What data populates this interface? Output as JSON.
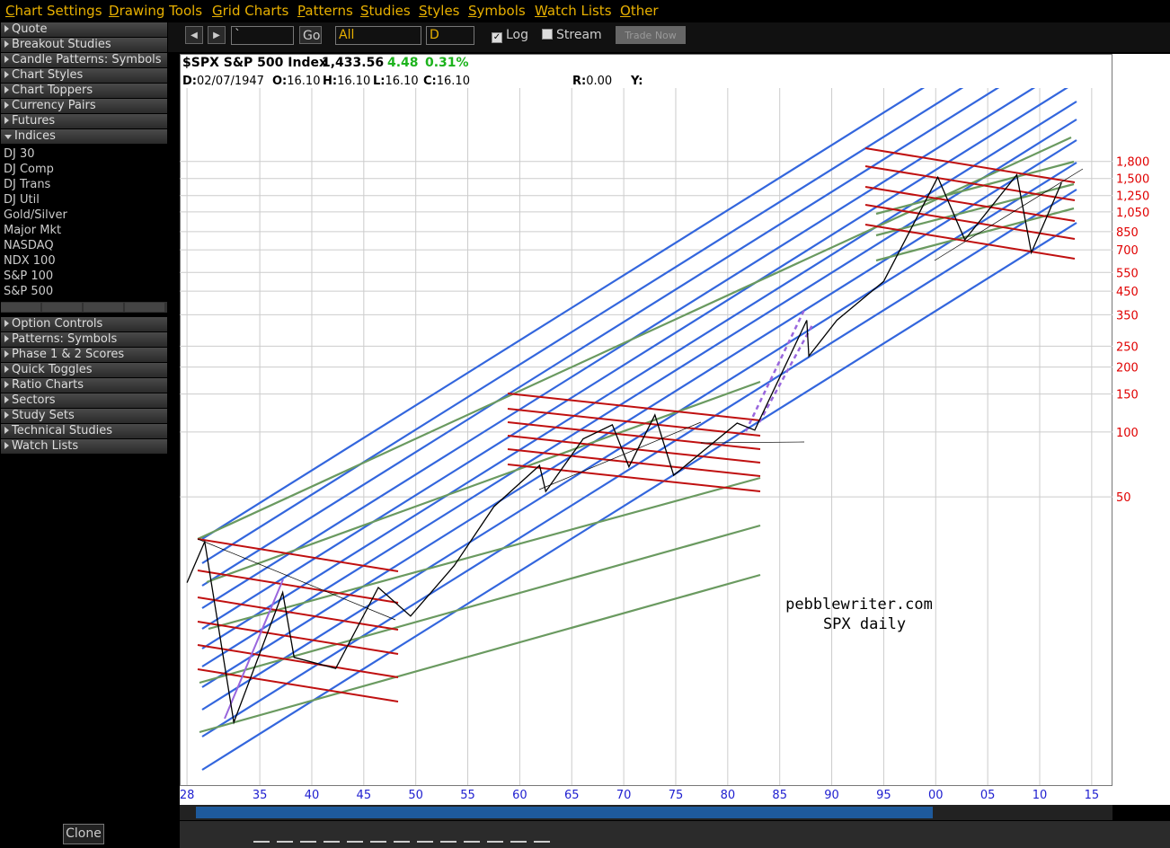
{
  "menu": [
    "Chart Settings",
    "Drawing Tools",
    "Grid Charts",
    "Patterns",
    "Studies",
    "Styles",
    "Symbols",
    "Watch Lists",
    "Other"
  ],
  "sidebar": {
    "top_sections": [
      "Quote",
      "Breakout Studies",
      "Candle Patterns: Symbols",
      "Chart Styles",
      "Chart Toppers",
      "Currency Pairs",
      "Futures"
    ],
    "open_section": "Indices",
    "indices": [
      "DJ 30",
      "DJ Comp",
      "DJ Trans",
      "DJ Util",
      "Gold/Silver",
      "Major Mkt",
      "NASDAQ",
      "NDX 100",
      "S&P 100",
      "S&P 500"
    ],
    "bottom_sections": [
      "Option Controls",
      "Patterns: Symbols",
      "Phase 1 & 2 Scores",
      "Quick Toggles",
      "Ratio Charts",
      "Sectors",
      "Study Sets",
      "Technical Studies",
      "Watch Lists"
    ],
    "clone": "Clone"
  },
  "toolbar": {
    "symbol": "`",
    "go": "Go",
    "range": "All",
    "period": "D",
    "log": "Log",
    "stream": "Stream",
    "trade": "Trade Now"
  },
  "header": {
    "symbol": "$SPX S&P 500 Index",
    "last": "1,433.56",
    "change": "4.48",
    "change_pct": "0.31%",
    "fields": [
      [
        "D:",
        "02/07/1947"
      ],
      [
        "O:",
        "16.10"
      ],
      [
        "H:",
        "16.10"
      ],
      [
        "L:",
        "16.10"
      ],
      [
        "C:",
        "16.10"
      ]
    ],
    "r": [
      "R:",
      "0.00"
    ],
    "y": "Y:"
  },
  "chart_data": {
    "type": "line",
    "log_y": true,
    "grid": true,
    "color": "#000000",
    "annotations": [
      "pebblewriter.com",
      "SPX daily"
    ],
    "x": [
      1928,
      1929.7,
      1932.5,
      1937.2,
      1938.3,
      1942.3,
      1946.4,
      1949.5,
      1953.7,
      1957.5,
      1961.9,
      1962.5,
      1966.1,
      1968.9,
      1970.5,
      1973.0,
      1974.8,
      1980.9,
      1982.6,
      1987.6,
      1987.8,
      1990.5,
      1995.0,
      2000.2,
      2002.8,
      2007.8,
      2009.2,
      2012.1
    ],
    "values": [
      20,
      31,
      4.5,
      18,
      9,
      8,
      19,
      14,
      24,
      45,
      70,
      53,
      93,
      108,
      69,
      120,
      63,
      110,
      102,
      330,
      225,
      330,
      500,
      1520,
      780,
      1560,
      680,
      1433.56
    ],
    "xlim": [
      1927.3,
      2017
    ],
    "xticks": [
      {
        "value": 1928,
        "label": "28"
      },
      {
        "value": 1935,
        "label": "35"
      },
      {
        "value": 1940,
        "label": "40"
      },
      {
        "value": 1945,
        "label": "45"
      },
      {
        "value": 1950,
        "label": "50"
      },
      {
        "value": 1955,
        "label": "55"
      },
      {
        "value": 1960,
        "label": "60"
      },
      {
        "value": 1965,
        "label": "65"
      },
      {
        "value": 1970,
        "label": "70"
      },
      {
        "value": 1975,
        "label": "75"
      },
      {
        "value": 1980,
        "label": "80"
      },
      {
        "value": 1985,
        "label": "85"
      },
      {
        "value": 1990,
        "label": "90"
      },
      {
        "value": 1995,
        "label": "95"
      },
      {
        "value": 2000,
        "label": "00"
      },
      {
        "value": 2005,
        "label": "05"
      },
      {
        "value": 2010,
        "label": "10"
      },
      {
        "value": 2015,
        "label": "15"
      }
    ],
    "ylim": [
      2.3,
      5570
    ],
    "yticks": [
      50,
      100,
      150,
      200,
      250,
      350,
      450,
      550,
      700,
      850,
      {
        "value": 1050,
        "label": "1,050"
      },
      {
        "value": 1250,
        "label": "1,250"
      },
      {
        "value": 1500,
        "label": "1,500"
      },
      {
        "value": 1800,
        "label": "1,800"
      }
    ]
  }
}
